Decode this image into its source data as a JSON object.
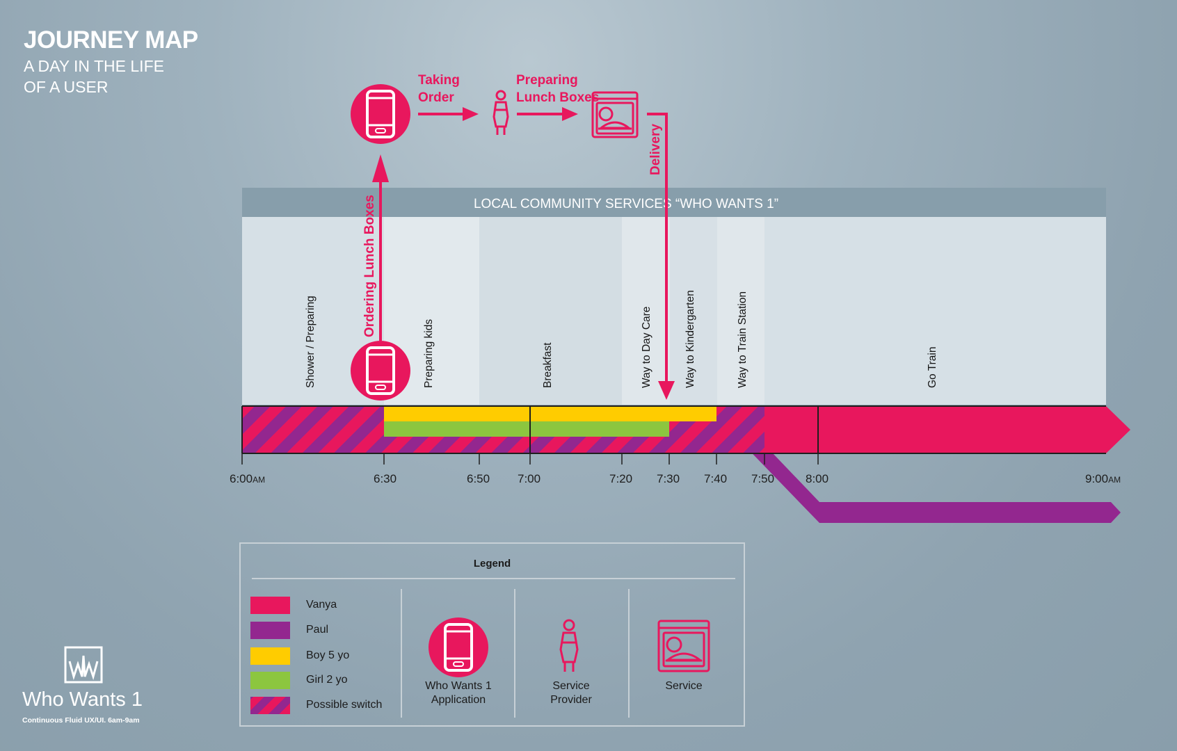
{
  "header": {
    "title": "JOURNEY MAP",
    "subtitle_line1": "A DAY IN THE LIFE",
    "subtitle_line2": "OF A USER"
  },
  "flow": {
    "step1": {
      "line1": "Taking",
      "line2": "Order"
    },
    "step2": {
      "line1": "Preparing",
      "line2": "Lunch Boxes"
    },
    "delivery": "Delivery",
    "ordering": "Ordering Lunch Boxes"
  },
  "services_band": {
    "label": "LOCAL COMMUNITY SERVICES  “WHO WANTS 1”"
  },
  "activities": [
    {
      "label": "Shower / Preparing",
      "start": "6:00",
      "end": "6:30"
    },
    {
      "label": "Preparing kids",
      "start": "6:30",
      "end": "6:50"
    },
    {
      "label": "Breakfast",
      "start": "6:50",
      "end": "7:20"
    },
    {
      "label": "Way to Day Care",
      "start": "7:20",
      "end": "7:30"
    },
    {
      "label": "Way to Kindergarten",
      "start": "7:30",
      "end": "7:40"
    },
    {
      "label": "Way to Train Station",
      "start": "7:40",
      "end": "7:50"
    },
    {
      "label": "Go Train",
      "start": "7:50",
      "end": "9:00"
    }
  ],
  "timeline": {
    "ticks": [
      {
        "time": "6:00",
        "suffix": "AM"
      },
      {
        "time": "6:30",
        "suffix": ""
      },
      {
        "time": "6:50",
        "suffix": ""
      },
      {
        "time": "7:00",
        "suffix": ""
      },
      {
        "time": "7:20",
        "suffix": ""
      },
      {
        "time": "7:30",
        "suffix": ""
      },
      {
        "time": "7:40",
        "suffix": ""
      },
      {
        "time": "7:50",
        "suffix": ""
      },
      {
        "time": "8:00",
        "suffix": ""
      },
      {
        "time": "9:00",
        "suffix": "AM"
      }
    ],
    "tracks": [
      {
        "person": "Possible switch",
        "start": "6:00",
        "end": "6:30"
      },
      {
        "person": "Boy 5 yo",
        "start": "6:30",
        "end": "7:40"
      },
      {
        "person": "Girl 2 yo",
        "start": "6:30",
        "end": "7:30"
      },
      {
        "person": "Possible switch",
        "start": "7:30",
        "end": "7:50"
      },
      {
        "person": "Vanya",
        "start": "7:50",
        "end": "9:00"
      },
      {
        "person": "Paul",
        "start": "8:00",
        "end": "9:00"
      }
    ]
  },
  "legend": {
    "title": "Legend",
    "colors": [
      {
        "label": "Vanya",
        "color": "#e8175d"
      },
      {
        "label": "Paul",
        "color": "#93278f"
      },
      {
        "label": "Boy 5 yo",
        "color": "#ffcc00"
      },
      {
        "label": "Girl 2 yo",
        "color": "#8cc63f"
      },
      {
        "label": "Possible switch",
        "color": "striped"
      }
    ],
    "icons": [
      {
        "icon": "smartphone-icon",
        "line1": "Who Wants 1",
        "line2": "Application"
      },
      {
        "icon": "person-icon",
        "line1": "Service",
        "line2": "Provider"
      },
      {
        "icon": "lunchbox-icon",
        "line1": "Service",
        "line2": ""
      }
    ]
  },
  "brand": {
    "name": "Who Wants 1",
    "tagline": "Continuous Fluid UX/UI. 6am-9am"
  },
  "colors": {
    "vanya": "#e8175d",
    "paul": "#93278f",
    "boy": "#ffcc00",
    "girl": "#8cc63f",
    "band": "#879eab"
  }
}
